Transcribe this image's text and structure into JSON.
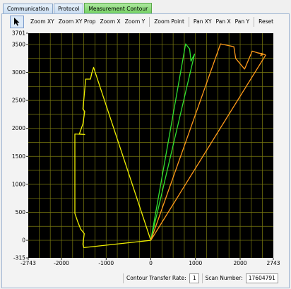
{
  "tabs": [
    "Communication",
    "Protocol",
    "Measurement Contour"
  ],
  "active_tab": 2,
  "toolbar": {
    "select_icon": "pointer-arrow-icon",
    "buttons": [
      "Zoom XY",
      "Zoom XY Prop",
      "Zoom X",
      "Zoom Y",
      "Zoom Point",
      "Pan XY",
      "Pan X",
      "Pan Y",
      "Reset"
    ]
  },
  "status": {
    "rate_label": "Contour Transfer Rate:",
    "rate_value": "1",
    "scan_label": "Scan Number:",
    "scan_value": "17604791"
  },
  "colors": {
    "plot_bg": "#000000",
    "grid": "#7d7d10",
    "yellow": "#f0f000",
    "green": "#30e030",
    "orange": "#ff9a1a",
    "active_tab": "#6fcf5e"
  },
  "chart_data": {
    "type": "line",
    "xlim": [
      -2743,
      2743
    ],
    "ylim": [
      -315,
      3701
    ],
    "x_ticks": [
      "-2743",
      "-2000",
      "-1000",
      "0",
      "1000",
      "2000",
      "2743"
    ],
    "y_ticks": [
      "-315",
      "0",
      "500",
      "1000",
      "1500",
      "2000",
      "2500",
      "3000",
      "3500",
      "3701"
    ],
    "x_tick_values": [
      -2743,
      -2000,
      -1000,
      0,
      1000,
      2000,
      2743
    ],
    "y_tick_values": [
      -315,
      0,
      500,
      1000,
      1500,
      2000,
      2500,
      3000,
      3500,
      3701
    ],
    "grid": true,
    "series": [
      {
        "color": "yellow",
        "points": [
          [
            0,
            0
          ],
          [
            -1280,
            3090
          ],
          [
            -1320,
            2990
          ],
          [
            -1350,
            2880
          ],
          [
            -1460,
            2880
          ],
          [
            -1490,
            2600
          ],
          [
            -1520,
            2350
          ],
          [
            -1480,
            2300
          ],
          [
            -1520,
            2080
          ],
          [
            -1600,
            1900
          ],
          [
            -1480,
            1890
          ],
          [
            -1700,
            1900
          ],
          [
            -1700,
            480
          ],
          [
            -1640,
            340
          ],
          [
            -1570,
            200
          ],
          [
            -1490,
            120
          ],
          [
            -1520,
            -70
          ],
          [
            -1500,
            -130
          ],
          [
            0,
            0
          ]
        ]
      },
      {
        "color": "green",
        "points": [
          [
            0,
            0
          ],
          [
            780,
            3510
          ],
          [
            870,
            3420
          ],
          [
            900,
            3200
          ],
          [
            980,
            3330
          ],
          [
            0,
            0
          ]
        ]
      },
      {
        "color": "orange",
        "points": [
          [
            0,
            0
          ],
          [
            1560,
            3510
          ],
          [
            1860,
            3460
          ],
          [
            1900,
            3250
          ],
          [
            2100,
            3060
          ],
          [
            2270,
            3380
          ],
          [
            2390,
            3350
          ],
          [
            2520,
            3330
          ],
          [
            2460,
            3300
          ],
          [
            2480,
            3340
          ],
          [
            2570,
            3310
          ],
          [
            0,
            0
          ]
        ]
      }
    ]
  }
}
